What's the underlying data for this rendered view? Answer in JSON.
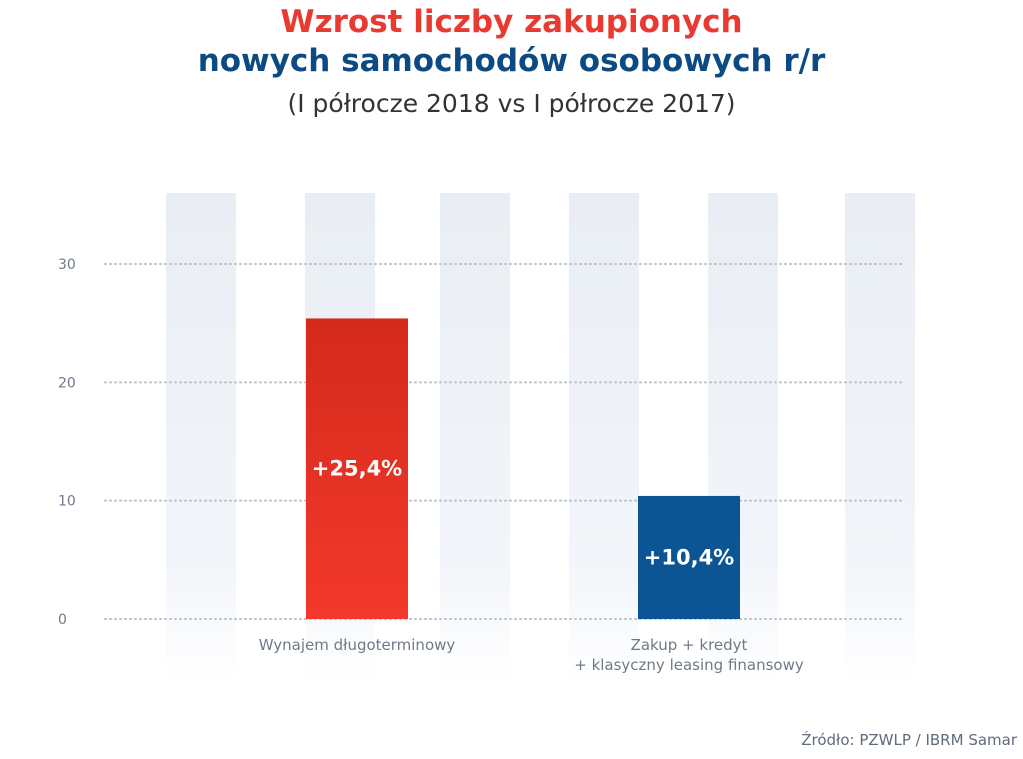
{
  "title_line1": "Wzrost liczby zakupionych",
  "title_line2": "nowych samochodów osobowych r/r",
  "subtitle": "(I półrocze 2018 vs I półrocze 2017)",
  "source": "Źródło: PZWLP / IBRM Samar",
  "colors": {
    "title_red": "#e83a30",
    "title_blue": "#0c4a84",
    "bar_red_top": "#d42a1c",
    "bar_red_bottom": "#f2392b",
    "bar_blue": "#0c5594",
    "stripe": "#e9eef4",
    "axis_text": "#6f7a89",
    "grid": "#b9c1cc"
  },
  "chart_data": {
    "type": "bar",
    "categories": [
      [
        "Wynajem długoterminowy"
      ],
      [
        "Zakup + kredyt",
        "+ klasyczny leasing finansowy"
      ]
    ],
    "values": [
      25.4,
      10.4
    ],
    "data_labels": [
      "+25,4%",
      "+10,4%"
    ],
    "bar_colors": [
      "red",
      "blue"
    ],
    "yticks": [
      "0",
      "10",
      "20",
      "30"
    ],
    "ylim": [
      0,
      36
    ],
    "grid": true,
    "legend": "none"
  }
}
